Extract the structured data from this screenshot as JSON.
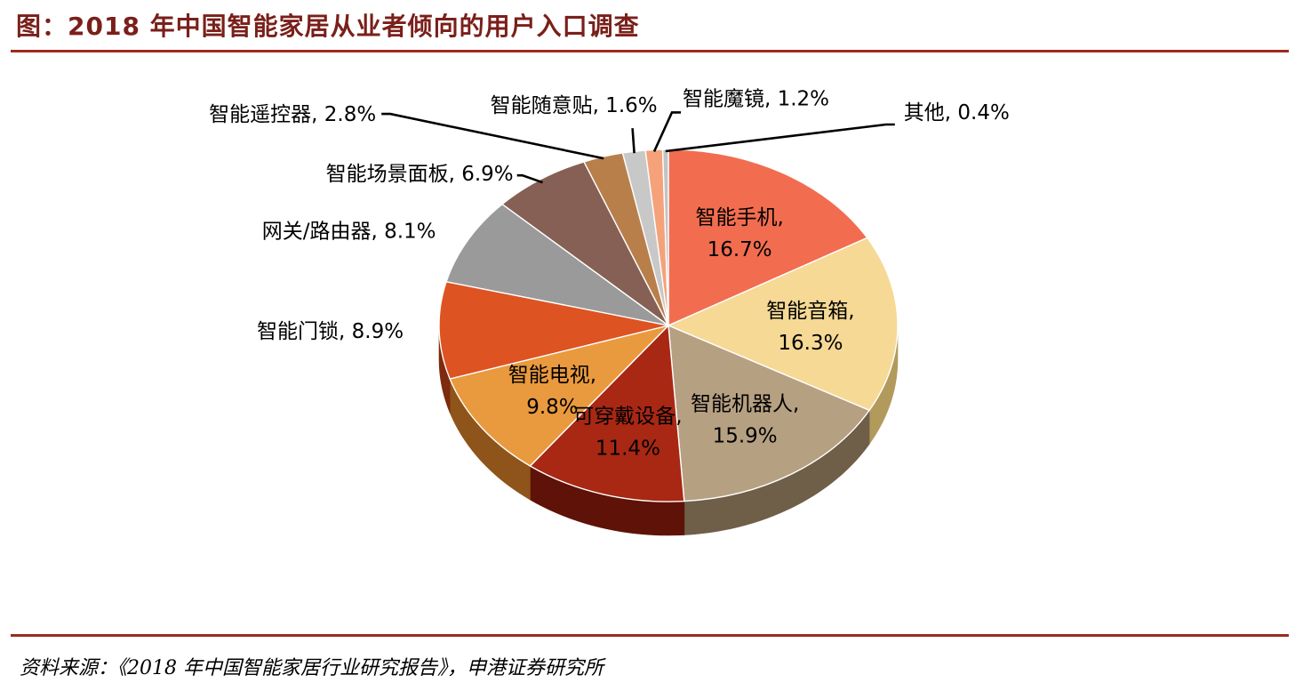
{
  "title": "图：2018 年中国智能家居从业者倾向的用户入口调查",
  "source": "资料来源：《2018 年中国智能家居行业研究报告》，申港证券研究所",
  "chart_data": {
    "type": "pie",
    "title": "图：2018 年中国智能家居从业者倾向的用户入口调查",
    "slices": [
      {
        "name": "智能手机",
        "value": 16.7,
        "label": "16.7%",
        "color": "#f26d50",
        "side": "#a8402c"
      },
      {
        "name": "智能音箱",
        "value": 16.3,
        "label": "16.3%",
        "color": "#f6d995",
        "side": "#b29a5c"
      },
      {
        "name": "智能机器人",
        "value": 15.9,
        "label": "15.9%",
        "color": "#b6a082",
        "side": "#6f5e48"
      },
      {
        "name": "可穿戴设备",
        "value": 11.4,
        "label": "11.4%",
        "color": "#a82814",
        "side": "#5e1208"
      },
      {
        "name": "智能电视",
        "value": 9.8,
        "label": "9.8%",
        "color": "#e99a3e",
        "side": "#8e5419"
      },
      {
        "name": "智能门锁",
        "value": 8.9,
        "label": "8.9%",
        "color": "#dd5322",
        "side": "#7d2a0e"
      },
      {
        "name": "网关/路由器",
        "value": 8.1,
        "label": "8.1%",
        "color": "#9a9a9a",
        "side": "#5d5d5d"
      },
      {
        "name": "智能场景面板",
        "value": 6.9,
        "label": "6.9%",
        "color": "#866054",
        "side": "#4a332b"
      },
      {
        "name": "智能遥控器",
        "value": 2.8,
        "label": "2.8%",
        "color": "#b97f4b",
        "side": "#6c4726"
      },
      {
        "name": "智能随意贴",
        "value": 1.6,
        "label": "1.6%",
        "color": "#c8c8c8",
        "side": "#7f7f7f"
      },
      {
        "name": "智能魔镜",
        "value": 1.2,
        "label": "1.2%",
        "color": "#f5a27a",
        "side": "#a05e3e"
      },
      {
        "name": "其他",
        "value": 0.4,
        "label": "0.4%",
        "color": "#c3c3c3",
        "side": "#7d7d7d"
      }
    ]
  }
}
